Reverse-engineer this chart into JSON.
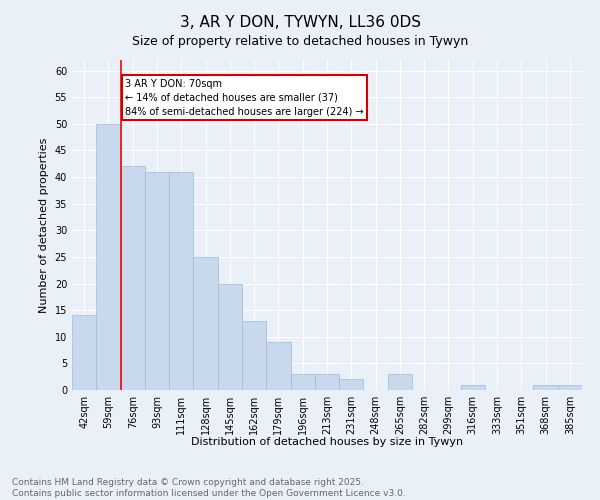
{
  "title": "3, AR Y DON, TYWYN, LL36 0DS",
  "subtitle": "Size of property relative to detached houses in Tywyn",
  "xlabel": "Distribution of detached houses by size in Tywyn",
  "ylabel": "Number of detached properties",
  "bar_labels": [
    "42sqm",
    "59sqm",
    "76sqm",
    "93sqm",
    "111sqm",
    "128sqm",
    "145sqm",
    "162sqm",
    "179sqm",
    "196sqm",
    "213sqm",
    "231sqm",
    "248sqm",
    "265sqm",
    "282sqm",
    "299sqm",
    "316sqm",
    "333sqm",
    "351sqm",
    "368sqm",
    "385sqm"
  ],
  "bar_values": [
    14,
    50,
    42,
    41,
    41,
    25,
    20,
    13,
    9,
    3,
    3,
    2,
    0,
    3,
    0,
    0,
    1,
    0,
    0,
    1,
    1
  ],
  "bar_color": "#c9d9ed",
  "bar_edge_color": "#a0b8d8",
  "ylim": [
    0,
    62
  ],
  "yticks": [
    0,
    5,
    10,
    15,
    20,
    25,
    30,
    35,
    40,
    45,
    50,
    55,
    60
  ],
  "annotation_text": "3 AR Y DON: 70sqm\n← 14% of detached houses are smaller (37)\n84% of semi-detached houses are larger (224) →",
  "annotation_box_color": "#ffffff",
  "annotation_box_edge": "#cc0000",
  "footer_line1": "Contains HM Land Registry data © Crown copyright and database right 2025.",
  "footer_line2": "Contains public sector information licensed under the Open Government Licence v3.0.",
  "bg_color": "#eaf0f8",
  "plot_bg_color": "#eaf0f8",
  "grid_color": "#ffffff",
  "title_fontsize": 11,
  "subtitle_fontsize": 9,
  "tick_fontsize": 7,
  "ylabel_fontsize": 8,
  "xlabel_fontsize": 8,
  "footer_fontsize": 6.5,
  "annotation_fontsize": 7,
  "red_line_x": 1.5
}
